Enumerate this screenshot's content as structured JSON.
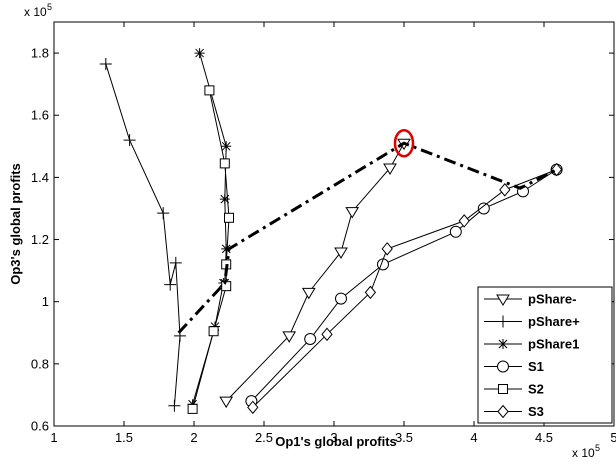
{
  "chart_data": {
    "type": "line",
    "title": "",
    "xlabel": "Op1's global profits",
    "ylabel": "Op3's global profits",
    "x_exponent": "x 10",
    "x_exponent_power": "5",
    "y_exponent": "x 10",
    "y_exponent_power": "5",
    "xlim": [
      1,
      5
    ],
    "ylim": [
      0.6,
      1.9
    ],
    "x_ticks": [
      "1",
      "1.5",
      "2",
      "2.5",
      "3",
      "3.5",
      "4",
      "4.5",
      "5"
    ],
    "x_tick_values": [
      1,
      1.5,
      2,
      2.5,
      3,
      3.5,
      4,
      4.5,
      5
    ],
    "y_ticks": [
      "0.6",
      "0.8",
      "1",
      "1.2",
      "1.4",
      "1.6",
      "1.8"
    ],
    "y_tick_values": [
      0.6,
      0.8,
      1.0,
      1.2,
      1.4,
      1.6,
      1.8
    ],
    "grid": false,
    "legend_position": "bottom-right",
    "series": [
      {
        "name": "pShare-",
        "marker": "triangle-down",
        "line": "solid",
        "x": [
          2.23,
          2.68,
          2.82,
          3.05,
          3.13,
          3.4,
          3.5
        ],
        "y": [
          0.68,
          0.89,
          1.03,
          1.16,
          1.29,
          1.43,
          1.51
        ]
      },
      {
        "name": "pShare+",
        "marker": "plus",
        "line": "solid",
        "x": [
          1.37,
          1.54,
          1.78,
          1.83,
          1.87,
          1.9,
          1.86
        ],
        "y": [
          1.765,
          1.52,
          1.285,
          1.055,
          1.125,
          0.89,
          0.665
        ]
      },
      {
        "name": "pShare1",
        "marker": "asterisk",
        "line": "solid",
        "x": [
          2.04,
          2.23,
          2.22,
          2.23,
          2.22,
          2.21,
          2.15,
          1.99
        ],
        "y": [
          1.8,
          1.5,
          1.33,
          1.17,
          1.06,
          1.06,
          0.92,
          0.67
        ]
      },
      {
        "name": "S1",
        "marker": "circle",
        "line": "solid",
        "x": [
          2.41,
          2.83,
          3.05,
          3.35,
          3.87,
          4.07,
          4.35,
          4.59
        ],
        "y": [
          0.68,
          0.88,
          1.01,
          1.12,
          1.225,
          1.3,
          1.355,
          1.425
        ]
      },
      {
        "name": "S2",
        "marker": "square",
        "line": "solid",
        "x": [
          2.11,
          2.22,
          2.25,
          2.23,
          2.23,
          2.14,
          1.99
        ],
        "y": [
          1.68,
          1.445,
          1.27,
          1.12,
          1.05,
          0.905,
          0.655
        ]
      },
      {
        "name": "S3",
        "marker": "diamond",
        "line": "solid",
        "x": [
          2.42,
          2.95,
          3.26,
          3.38,
          3.93,
          4.22,
          4.59
        ],
        "y": [
          0.66,
          0.895,
          1.03,
          1.17,
          1.26,
          1.36,
          1.425
        ]
      }
    ],
    "annotations": [
      {
        "kind": "dash-dot-line",
        "color": "#000000",
        "x": [
          1.89,
          2.22,
          2.25,
          3.5,
          4.33,
          4.59
        ],
        "y": [
          0.9,
          1.06,
          1.17,
          1.51,
          1.365,
          1.425
        ]
      },
      {
        "kind": "highlight-ellipse",
        "color": "#e00000",
        "x": 3.5,
        "y": 1.51
      }
    ]
  }
}
